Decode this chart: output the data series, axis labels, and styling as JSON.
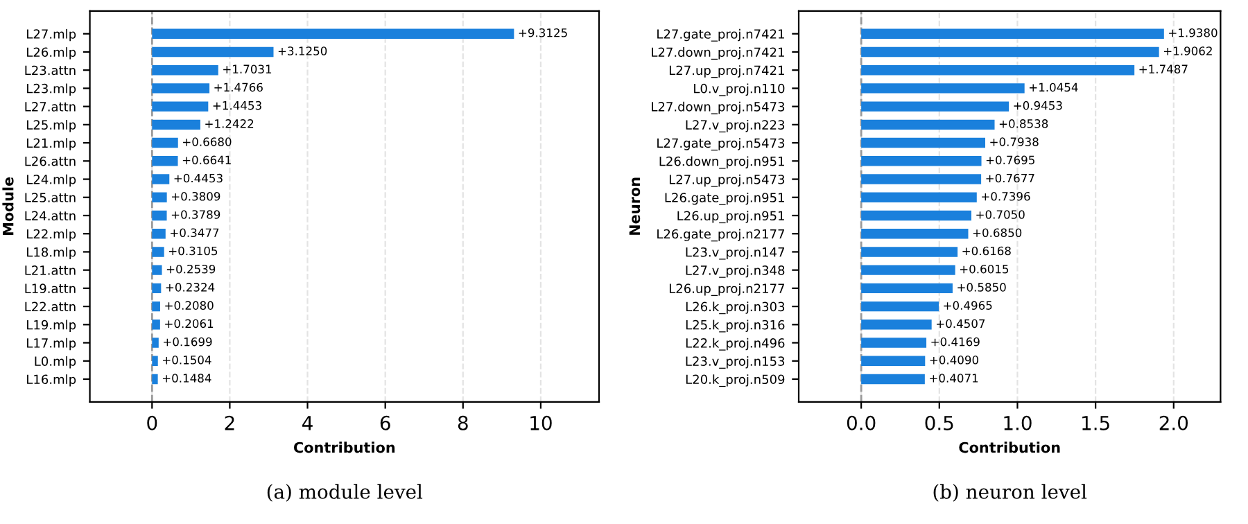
{
  "chart_data": [
    {
      "type": "bar",
      "orientation": "horizontal",
      "xlabel": "Contribution",
      "ylabel": "Module",
      "categories": [
        "L27.mlp",
        "L26.mlp",
        "L23.attn",
        "L23.mlp",
        "L27.attn",
        "L25.mlp",
        "L21.mlp",
        "L26.attn",
        "L24.mlp",
        "L25.attn",
        "L24.attn",
        "L22.mlp",
        "L18.mlp",
        "L21.attn",
        "L19.attn",
        "L22.attn",
        "L19.mlp",
        "L17.mlp",
        "L0.mlp",
        "L16.mlp"
      ],
      "values": [
        9.3125,
        3.125,
        1.7031,
        1.4766,
        1.4453,
        1.2422,
        0.668,
        0.6641,
        0.4453,
        0.3809,
        0.3789,
        0.3477,
        0.3105,
        0.2539,
        0.2324,
        0.208,
        0.2061,
        0.1699,
        0.1504,
        0.1484
      ],
      "value_labels": [
        "+9.3125",
        "+3.1250",
        "+1.7031",
        "+1.4766",
        "+1.4453",
        "+1.2422",
        "+0.6680",
        "+0.6641",
        "+0.4453",
        "+0.3809",
        "+0.3789",
        "+0.3477",
        "+0.3105",
        "+0.2539",
        "+0.2324",
        "+0.2080",
        "+0.2061",
        "+0.1699",
        "+0.1504",
        "+0.1484"
      ],
      "color": "#1a80dc",
      "xlim": [
        -1.6,
        11.5
      ],
      "xticks": [
        0,
        2,
        4,
        6,
        8,
        10
      ],
      "grid": "x",
      "ref_lines": [
        {
          "axis": "x",
          "value": 0,
          "color": "#999999",
          "line_style": "dashed"
        }
      ],
      "annotations": [
        "(a) module level"
      ]
    },
    {
      "type": "bar",
      "orientation": "horizontal",
      "xlabel": "Contribution",
      "ylabel": "Neuron",
      "categories": [
        "L27.gate_proj.n7421",
        "L27.down_proj.n7421",
        "L27.up_proj.n7421",
        "L0.v_proj.n110",
        "L27.down_proj.n5473",
        "L27.v_proj.n223",
        "L27.gate_proj.n5473",
        "L26.down_proj.n951",
        "L27.up_proj.n5473",
        "L26.gate_proj.n951",
        "L26.up_proj.n951",
        "L26.gate_proj.n2177",
        "L23.v_proj.n147",
        "L27.v_proj.n348",
        "L26.up_proj.n2177",
        "L26.k_proj.n303",
        "L25.k_proj.n316",
        "L22.k_proj.n496",
        "L23.v_proj.n153",
        "L20.k_proj.n509"
      ],
      "values": [
        1.938,
        1.9062,
        1.7487,
        1.0454,
        0.9453,
        0.8538,
        0.7938,
        0.7695,
        0.7677,
        0.7396,
        0.705,
        0.685,
        0.6168,
        0.6015,
        0.585,
        0.4965,
        0.4507,
        0.4169,
        0.409,
        0.4071
      ],
      "value_labels": [
        "+1.9380",
        "+1.9062",
        "+1.7487",
        "+1.0454",
        "+0.9453",
        "+0.8538",
        "+0.7938",
        "+0.7695",
        "+0.7677",
        "+0.7396",
        "+0.7050",
        "+0.6850",
        "+0.6168",
        "+0.6015",
        "+0.5850",
        "+0.4965",
        "+0.4507",
        "+0.4169",
        "+0.4090",
        "+0.4071"
      ],
      "color": "#1a80dc",
      "xlim": [
        -0.4,
        2.3
      ],
      "xticks": [
        {
          "value": 0,
          "label": "0.0"
        },
        0.5,
        {
          "value": 1,
          "label": "1.0"
        },
        1.5,
        {
          "value": 2,
          "label": "2.0"
        }
      ],
      "grid": "x",
      "ref_lines": [
        {
          "axis": "x",
          "value": 0,
          "color": "#999999",
          "line_style": "dashed"
        }
      ],
      "annotations": [
        "(b) neuron level"
      ]
    }
  ]
}
